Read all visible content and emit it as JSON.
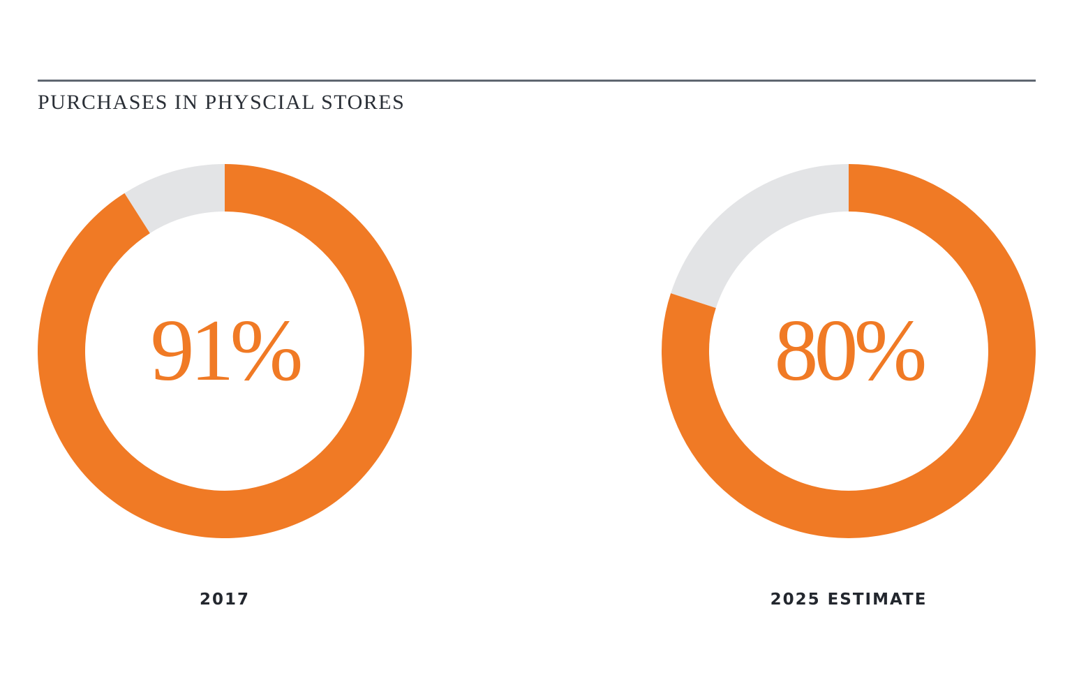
{
  "title": "PURCHASES IN PHYSCIAL STORES",
  "colors": {
    "filled": "#f07a25",
    "remainder": "#e3e4e6",
    "rule": "#5f6670",
    "text": "#23272e"
  },
  "chart_data": [
    {
      "type": "pie",
      "title": "PURCHASES IN PHYSCIAL STORES",
      "label": "2017",
      "value": 91,
      "value_label": "91%",
      "max": 100
    },
    {
      "type": "pie",
      "title": "PURCHASES IN PHYSCIAL STORES",
      "label": "2025 ESTIMATE",
      "value": 80,
      "value_label": "80%",
      "max": 100
    }
  ]
}
